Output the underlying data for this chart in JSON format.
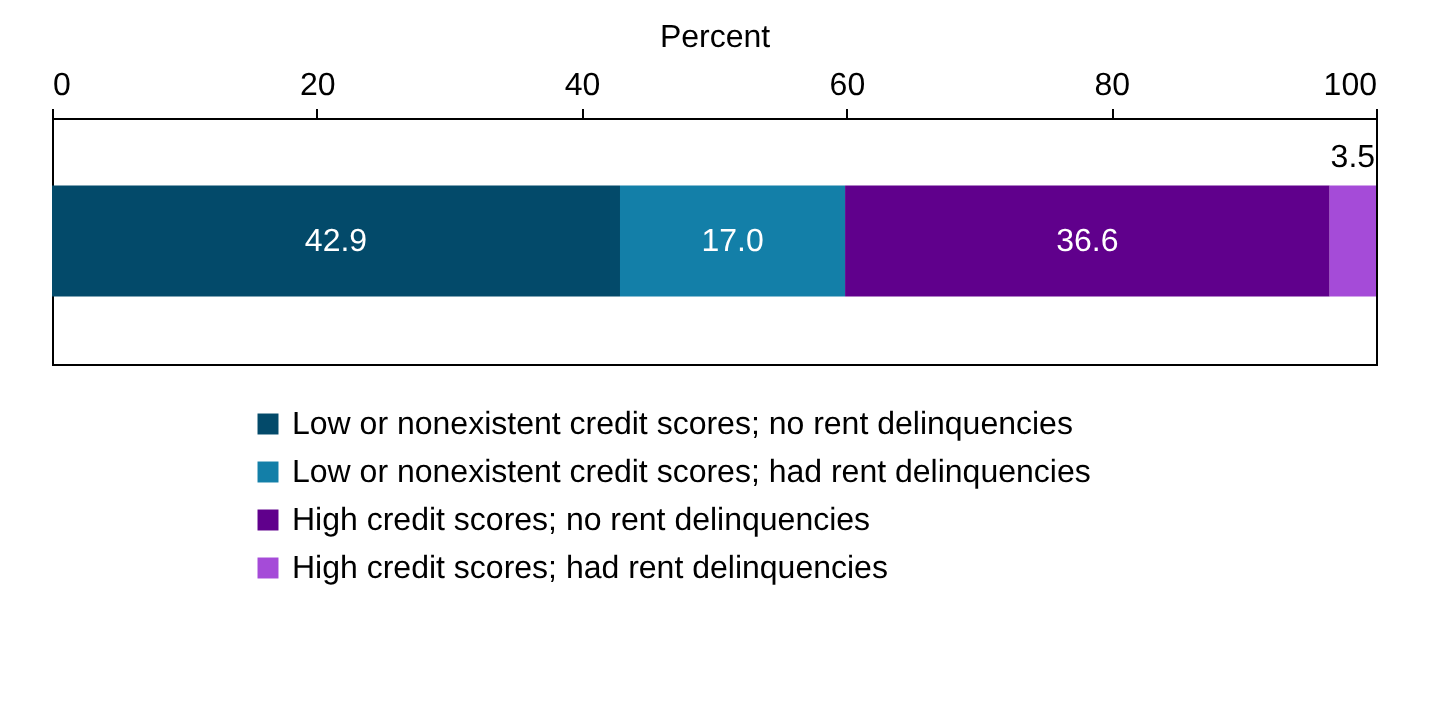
{
  "chart_data": {
    "type": "bar",
    "orientation": "horizontal",
    "stacked": true,
    "xlabel": "Percent",
    "categories": [
      null
    ],
    "series": [
      {
        "name": "Low or nonexistent credit scores; no rent delinquencies",
        "color": "#034a6a",
        "values": [
          42.9
        ],
        "value_labels": [
          "42.9"
        ]
      },
      {
        "name": "Low or nonexistent credit scores; had rent delinquencies",
        "color": "#137fa8",
        "values": [
          17.0
        ],
        "value_labels": [
          "17.0"
        ]
      },
      {
        "name": "High credit scores; no rent delinquencies",
        "color": "#60008c",
        "values": [
          36.6
        ],
        "value_labels": [
          "36.6"
        ]
      },
      {
        "name": "High credit scores; had rent delinquencies",
        "color": "#a54bd8",
        "values": [
          3.5
        ],
        "value_labels": [
          "3.5"
        ]
      }
    ],
    "xlim": [
      0,
      100
    ],
    "xticks": [
      0,
      20,
      40,
      60,
      80,
      100
    ],
    "legend": "bottom"
  }
}
